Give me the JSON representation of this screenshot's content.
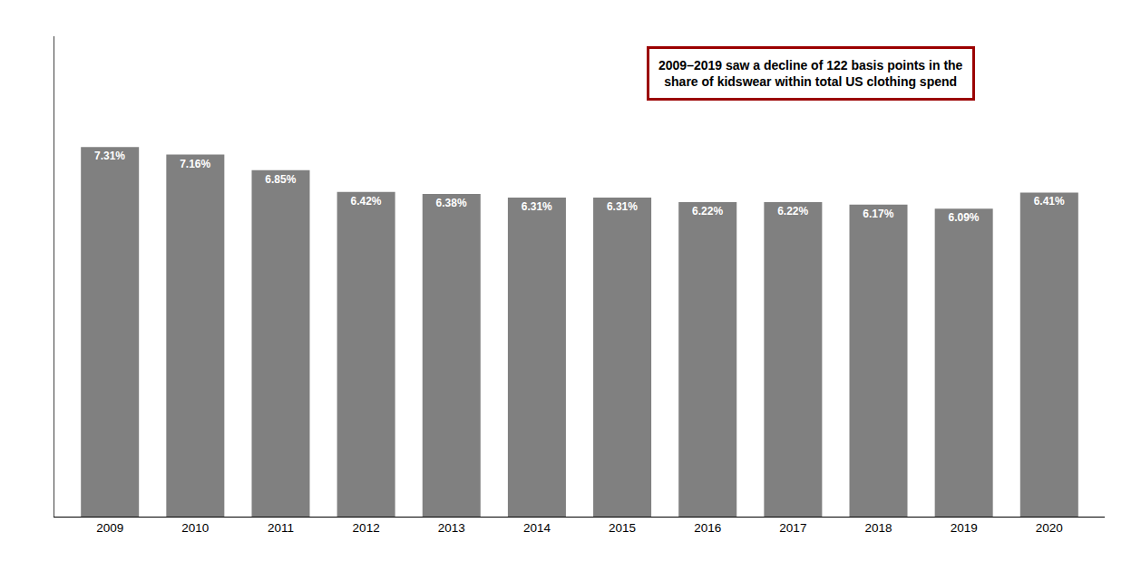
{
  "chart_data": {
    "type": "bar",
    "x": [
      2009,
      2010,
      2011,
      2012,
      2013,
      2014,
      2015,
      2016,
      2017,
      2018,
      2019,
      2020
    ],
    "values": [
      7.31,
      7.16,
      6.85,
      6.42,
      6.38,
      6.31,
      6.31,
      6.22,
      6.22,
      6.17,
      6.09,
      6.41
    ],
    "value_labels": [
      "7.31%",
      "7.16%",
      "6.85%",
      "6.42%",
      "6.38%",
      "6.31%",
      "6.31%",
      "6.22%",
      "6.22%",
      "6.17%",
      "6.09%",
      "6.41%"
    ],
    "data_labels": true,
    "color": "#808080",
    "annotations": [
      "2009–2019 saw a decline of 122 basis points in the\nshare of kidswear within total US clothing spend"
    ],
    "xlim": [
      2008.35,
      2020.65
    ],
    "xticks": [
      2009,
      2010,
      2011,
      2012,
      2013,
      2014,
      2015,
      2016,
      2017,
      2018,
      2019,
      2020
    ],
    "ylim": [
      0,
      9.5
    ],
    "tick_labels": "x",
    "grid": false
  }
}
